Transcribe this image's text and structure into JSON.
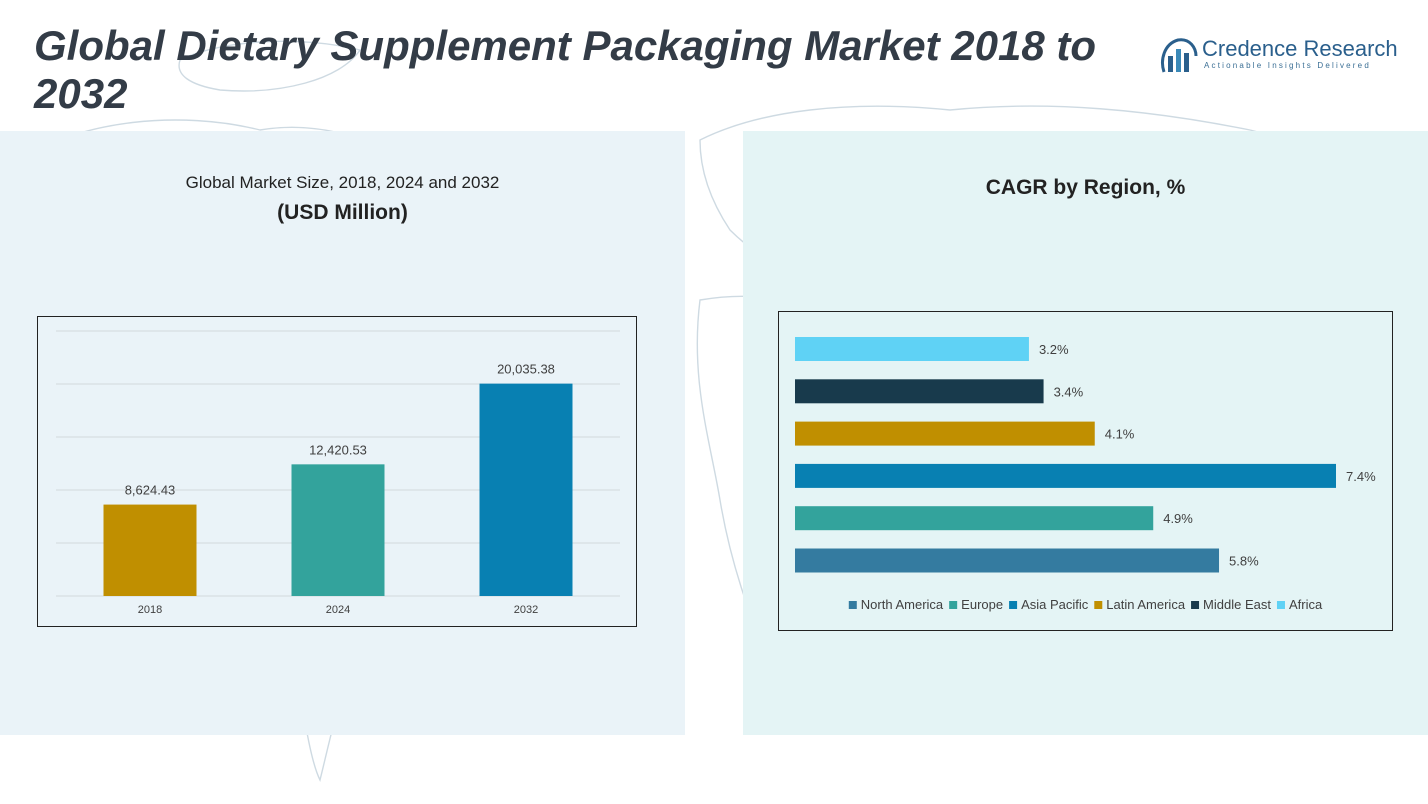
{
  "title": "Global Dietary Supplement Packaging Market 2018 to 2032",
  "brand": {
    "name": "Credence Research",
    "tagline": "Actionable Insights Delivered",
    "color": "#2a5f8c"
  },
  "left_chart": {
    "title": "Global Market Size, 2018, 2024 and 2032",
    "unit": "(USD Million)"
  },
  "right_chart": {
    "title": "CAGR by Region, %"
  },
  "chart_data": [
    {
      "type": "bar",
      "title": "Global Market Size, 2018, 2024 and 2032",
      "ylabel": "(USD Million)",
      "categories": [
        "2018",
        "2024",
        "2032"
      ],
      "values": [
        8624.43,
        12420.53,
        20035.38
      ],
      "value_labels": [
        "8,624.43",
        "12,420.53",
        "20,035.38"
      ],
      "colors": [
        "#c08f00",
        "#33a39c",
        "#0880b2"
      ],
      "ylim": [
        0,
        25000
      ],
      "grid": true
    },
    {
      "type": "bar",
      "orientation": "horizontal",
      "title": "CAGR by Region, %",
      "categories": [
        "Africa",
        "Middle East",
        "Latin America",
        "Asia Pacific",
        "Europe",
        "North America"
      ],
      "values": [
        3.2,
        3.4,
        4.1,
        7.4,
        4.9,
        5.8
      ],
      "value_labels": [
        "3.2%",
        "3.4%",
        "4.1%",
        "7.4%",
        "4.9%",
        "5.8%"
      ],
      "colors": [
        "#5fd2f5",
        "#183a4c",
        "#c08f00",
        "#0880b2",
        "#33a39c",
        "#347ba0"
      ],
      "legend": [
        {
          "name": "North America",
          "color": "#347ba0"
        },
        {
          "name": "Europe",
          "color": "#33a39c"
        },
        {
          "name": "Asia Pacific",
          "color": "#0880b2"
        },
        {
          "name": "Latin America",
          "color": "#c08f00"
        },
        {
          "name": "Middle East",
          "color": "#183a4c"
        },
        {
          "name": "Africa",
          "color": "#5fd2f5"
        }
      ],
      "legend_position": "bottom",
      "grid": false
    }
  ]
}
